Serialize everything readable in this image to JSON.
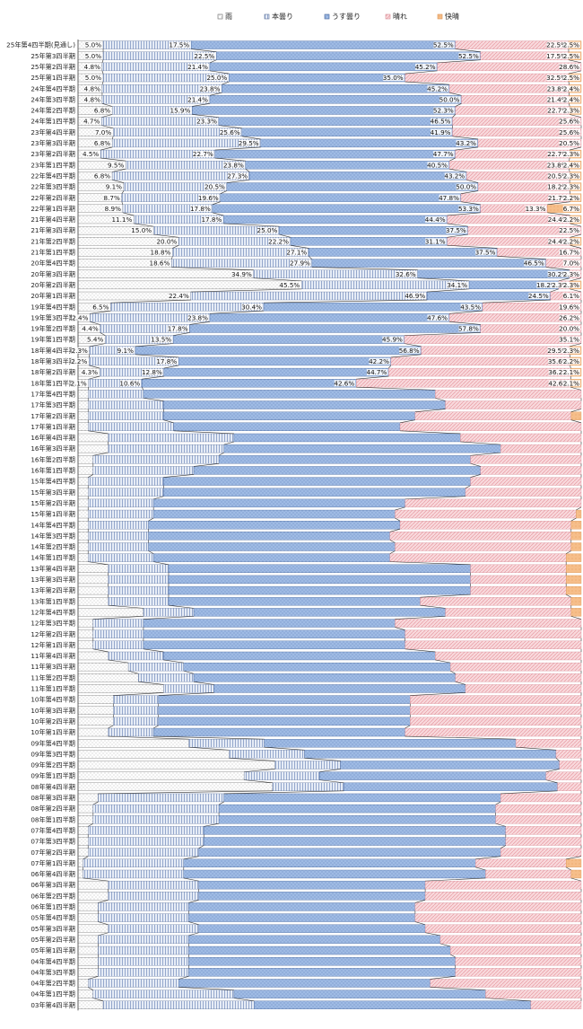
{
  "chart_data": {
    "type": "bar",
    "orientation": "horizontal",
    "stacked": "percent",
    "legend_position": "top",
    "colors": {
      "雨": "#ffffff",
      "本曇り": "#dfe6f2",
      "うす曇り": "#9bb7e0",
      "晴れ": "#f6d0d5",
      "快晴": "#f4b57a"
    },
    "series_names": [
      "雨",
      "本曇り",
      "うす曇り",
      "晴れ",
      "快晴"
    ],
    "categories": [
      "25年第4四半期(見通し)",
      "25年第3四半期",
      "25年第2四半期",
      "25年第1四半期",
      "24年第4四半期",
      "24年第3四半期",
      "24年第2四半期",
      "24年第1四半期",
      "23年第4四半期",
      "23年第3四半期",
      "23年第2四半期",
      "23年第1四半期",
      "22年第4四半期",
      "22年第3四半期",
      "22年第2四半期",
      "22年第1四半期",
      "21年第4四半期",
      "21年第3四半期",
      "21年第2四半期",
      "21年第1四半期",
      "20年第4四半期",
      "20年第3四半期",
      "20年第2四半期",
      "20年第1四半期",
      "19年第4四半期",
      "19年第3四半期",
      "19年第2四半期",
      "19年第1四半期",
      "18年第4四半期",
      "18年第3四半期",
      "18年第2四半期",
      "18年第1四半期",
      "17年第4四半期",
      "17年第3四半期",
      "17年第2四半期",
      "17年第1四半期",
      "16年第4四半期",
      "16年第3四半期",
      "16年第2四半期",
      "16年第1四半期",
      "15年第4四半期",
      "15年第3四半期",
      "15年第2四半期",
      "15年第1四半期",
      "14年第4四半期",
      "14年第3四半期",
      "14年第2四半期",
      "14年第1四半期",
      "13年第4四半期",
      "13年第3四半期",
      "13年第2四半期",
      "13年第1四半期",
      "12年第4四半期",
      "12年第3四半期",
      "12年第2四半期",
      "12年第1四半期",
      "11年第4四半期",
      "11年第3四半期",
      "11年第2四半期",
      "11年第1四半期",
      "10年第4四半期",
      "10年第3四半期",
      "10年第2四半期",
      "10年第1四半期",
      "09年第4四半期",
      "09年第3四半期",
      "09年第2四半期",
      "09年第1四半期",
      "08年第4四半期",
      "08年第3四半期",
      "08年第2四半期",
      "08年第1四半期",
      "07年第4四半期",
      "07年第3四半期",
      "07年第2四半期",
      "07年第1四半期",
      "06年第4四半期",
      "06年第3四半期",
      "06年第2四半期",
      "06年第1四半期",
      "05年第4四半期",
      "05年第3四半期",
      "05年第2四半期",
      "05年第1四半期",
      "04年第4四半期",
      "04年第3四半期",
      "04年第2四半期",
      "04年第1四半期",
      "03年第4四半期"
    ],
    "labeled_rows": 32,
    "series": [
      {
        "name": "雨",
        "values": [
          5.0,
          5.0,
          4.8,
          5.0,
          4.8,
          4.8,
          6.8,
          4.7,
          7.0,
          6.8,
          4.5,
          9.5,
          6.8,
          9.1,
          8.7,
          8.9,
          11.1,
          15.0,
          20.0,
          18.8,
          18.6,
          34.9,
          45.5,
          22.4,
          6.5,
          2.4,
          4.4,
          5.4,
          2.3,
          2.2,
          4.3,
          2.1,
          2,
          2,
          2,
          2,
          6,
          6,
          3,
          3,
          2,
          2,
          2,
          2,
          2,
          2,
          2,
          2,
          6,
          6,
          6,
          6,
          13,
          3,
          3,
          3,
          6,
          10,
          12,
          17,
          7,
          7,
          7,
          6,
          22,
          30,
          45,
          33,
          41,
          4,
          3,
          3,
          2,
          2,
          2,
          1,
          1,
          6,
          6,
          4,
          4,
          6,
          4,
          4,
          4,
          4,
          2,
          3,
          5
        ]
      },
      {
        "name": "本曇り",
        "values": [
          17.5,
          22.5,
          21.4,
          25.0,
          23.8,
          21.4,
          15.9,
          23.3,
          25.6,
          29.5,
          22.7,
          23.8,
          27.3,
          20.5,
          19.6,
          17.8,
          17.8,
          25.0,
          22.2,
          27.1,
          27.9,
          32.6,
          34.1,
          46.9,
          30.4,
          23.8,
          17.8,
          13.5,
          9.1,
          17.8,
          12.8,
          10.6,
          11,
          15,
          15,
          17,
          25,
          23,
          25,
          20,
          15,
          15,
          13,
          13,
          12,
          12,
          12,
          13,
          12,
          12,
          12,
          12,
          10,
          10,
          10,
          10,
          11,
          11,
          11,
          10,
          9,
          9,
          9,
          9,
          15,
          15,
          15,
          15,
          15,
          25,
          25,
          25,
          23,
          23,
          22,
          20,
          20,
          18,
          18,
          18,
          18,
          18,
          18,
          18,
          18,
          18,
          18,
          28,
          30
        ]
      },
      {
        "name": "うす曇り",
        "values": [
          52.5,
          52.5,
          45.2,
          35.0,
          45.2,
          50.0,
          52.3,
          46.5,
          41.9,
          43.2,
          47.7,
          40.5,
          43.2,
          50.0,
          47.8,
          53.3,
          44.4,
          37.5,
          31.1,
          37.5,
          46.5,
          30.2,
          18.2,
          24.5,
          43.5,
          47.6,
          57.8,
          45.9,
          56.8,
          42.2,
          44.7,
          42.6,
          58,
          56,
          50,
          45,
          45,
          55,
          50,
          57,
          61,
          60,
          50,
          48,
          50,
          48,
          49,
          47,
          60,
          60,
          60,
          50,
          50,
          50,
          52,
          52,
          54,
          53,
          52,
          50,
          50,
          50,
          50,
          50,
          50,
          50,
          50,
          45,
          45,
          55,
          55,
          55,
          60,
          60,
          60,
          58,
          60,
          45,
          45,
          45,
          45,
          45,
          50,
          52,
          53,
          53,
          50,
          50,
          55
        ]
      },
      {
        "name": "晴れ",
        "values": [
          22.5,
          17.5,
          28.6,
          32.5,
          23.8,
          21.4,
          22.7,
          25.6,
          25.6,
          20.5,
          22.7,
          23.8,
          20.5,
          18.2,
          21.7,
          13.3,
          24.4,
          22.5,
          24.4,
          16.7,
          7.0,
          2.3,
          2.3,
          6.1,
          19.6,
          26.2,
          20.0,
          35.1,
          29.5,
          35.6,
          36.2,
          42.6,
          29,
          27,
          31,
          36,
          24,
          16,
          22,
          20,
          22,
          23,
          35,
          36,
          34,
          36,
          35,
          35,
          19,
          19,
          19,
          30,
          25,
          37,
          35,
          35,
          29,
          26,
          25,
          23,
          34,
          34,
          34,
          35,
          13,
          5,
          5,
          7,
          5,
          16,
          17,
          17,
          15,
          15,
          16,
          18,
          17,
          31,
          31,
          33,
          33,
          31,
          28,
          26,
          25,
          25,
          30,
          19,
          10
        ]
      },
      {
        "name": "快晴",
        "values": [
          2.5,
          2.5,
          0.0,
          2.5,
          2.4,
          2.4,
          2.3,
          0.0,
          0.0,
          0.0,
          2.3,
          2.4,
          2.3,
          2.3,
          2.2,
          6.7,
          2.2,
          0.0,
          2.2,
          0.0,
          0.0,
          0.0,
          2.3,
          0.0,
          0.0,
          0.0,
          0.0,
          0.0,
          2.3,
          2.2,
          2.1,
          2.1,
          0,
          0,
          2,
          0,
          0,
          0,
          0,
          0,
          0,
          0,
          0,
          1,
          2,
          2,
          2,
          3,
          3,
          3,
          3,
          2,
          2,
          0,
          0,
          0,
          0,
          0,
          0,
          0,
          0,
          0,
          0,
          0,
          0,
          0,
          0,
          0,
          0,
          0,
          0,
          0,
          0,
          0,
          0,
          3,
          2,
          0,
          0,
          0,
          0,
          0,
          0,
          0,
          0,
          0,
          0,
          0,
          0
        ]
      }
    ]
  }
}
